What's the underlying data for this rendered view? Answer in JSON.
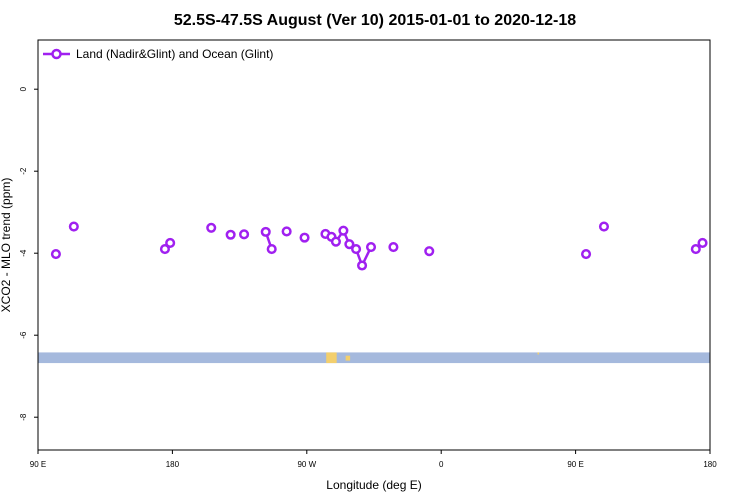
{
  "chart_data": {
    "type": "line",
    "title": "52.5S-47.5S August (Ver 10)   2015-01-01 to 2020-12-18",
    "xlabel": "Longitude (deg E)",
    "ylabel": "XCO2 - MLO trend (ppm)",
    "xlim": [
      90,
      540
    ],
    "ylim": [
      -8.8,
      1.2
    ],
    "x_ticks": [
      {
        "value": 90,
        "label": "90 E"
      },
      {
        "value": 180,
        "label": "180"
      },
      {
        "value": 270,
        "label": "90 W"
      },
      {
        "value": 360,
        "label": "0"
      },
      {
        "value": 450,
        "label": "90 E"
      },
      {
        "value": 540,
        "label": "180"
      }
    ],
    "y_ticks": [
      {
        "value": 0,
        "label": "0"
      },
      {
        "value": -2,
        "label": "-2"
      },
      {
        "value": -4,
        "label": "-4"
      },
      {
        "value": -6,
        "label": "-6"
      },
      {
        "value": -8,
        "label": "-8"
      }
    ],
    "legend_position": "top-left",
    "grid": false,
    "series": [
      {
        "name": "Land (Nadir&Glint) and Ocean (Glint)",
        "color": "#a020f0",
        "marker": "open-circle",
        "points": [
          {
            "x": 102,
            "y": -4.02
          },
          {
            "x": 114,
            "y": -3.35
          },
          {
            "x": 175,
            "y": -3.9
          },
          {
            "x": 178.5,
            "y": -3.75
          },
          {
            "x": 206,
            "y": -3.38
          },
          {
            "x": 219,
            "y": -3.55
          },
          {
            "x": 228,
            "y": -3.54
          },
          {
            "x": 242.5,
            "y": -3.48
          },
          {
            "x": 246.5,
            "y": -3.9
          },
          {
            "x": 256.5,
            "y": -3.47
          },
          {
            "x": 268.5,
            "y": -3.62
          },
          {
            "x": 282.5,
            "y": -3.53
          },
          {
            "x": 286.5,
            "y": -3.6
          },
          {
            "x": 289.5,
            "y": -3.72
          },
          {
            "x": 294.5,
            "y": -3.45
          },
          {
            "x": 298.5,
            "y": -3.78
          },
          {
            "x": 303,
            "y": -3.9
          },
          {
            "x": 307,
            "y": -4.3
          },
          {
            "x": 313,
            "y": -3.85
          },
          {
            "x": 328,
            "y": -3.85
          },
          {
            "x": 352,
            "y": -3.95
          },
          {
            "x": 457,
            "y": -4.02
          },
          {
            "x": 469,
            "y": -3.35
          },
          {
            "x": 530.5,
            "y": -3.9
          },
          {
            "x": 535,
            "y": -3.75
          }
        ],
        "segments": [
          [
            0
          ],
          [
            1
          ],
          [
            2,
            3
          ],
          [
            4
          ],
          [
            5
          ],
          [
            6
          ],
          [
            7,
            8
          ],
          [
            9
          ],
          [
            10
          ],
          [
            11,
            12,
            13,
            14,
            15,
            16,
            17,
            18
          ],
          [
            19
          ],
          [
            20
          ],
          [
            21
          ],
          [
            22
          ],
          [
            23,
            24
          ]
        ]
      }
    ],
    "map_strip": {
      "y_range": [
        -6.68,
        -6.42
      ],
      "ocean_color": "#a5b9dd",
      "land_color": "#f3cf6d",
      "land_patches": [
        {
          "x": [
            283,
            290
          ],
          "y": [
            -6.68,
            -6.42
          ]
        },
        {
          "x": [
            296,
            299
          ],
          "y": [
            -6.62,
            -6.5
          ]
        },
        {
          "x": [
            424.5,
            425.5
          ],
          "y": [
            -6.47,
            -6.42
          ]
        }
      ]
    }
  }
}
